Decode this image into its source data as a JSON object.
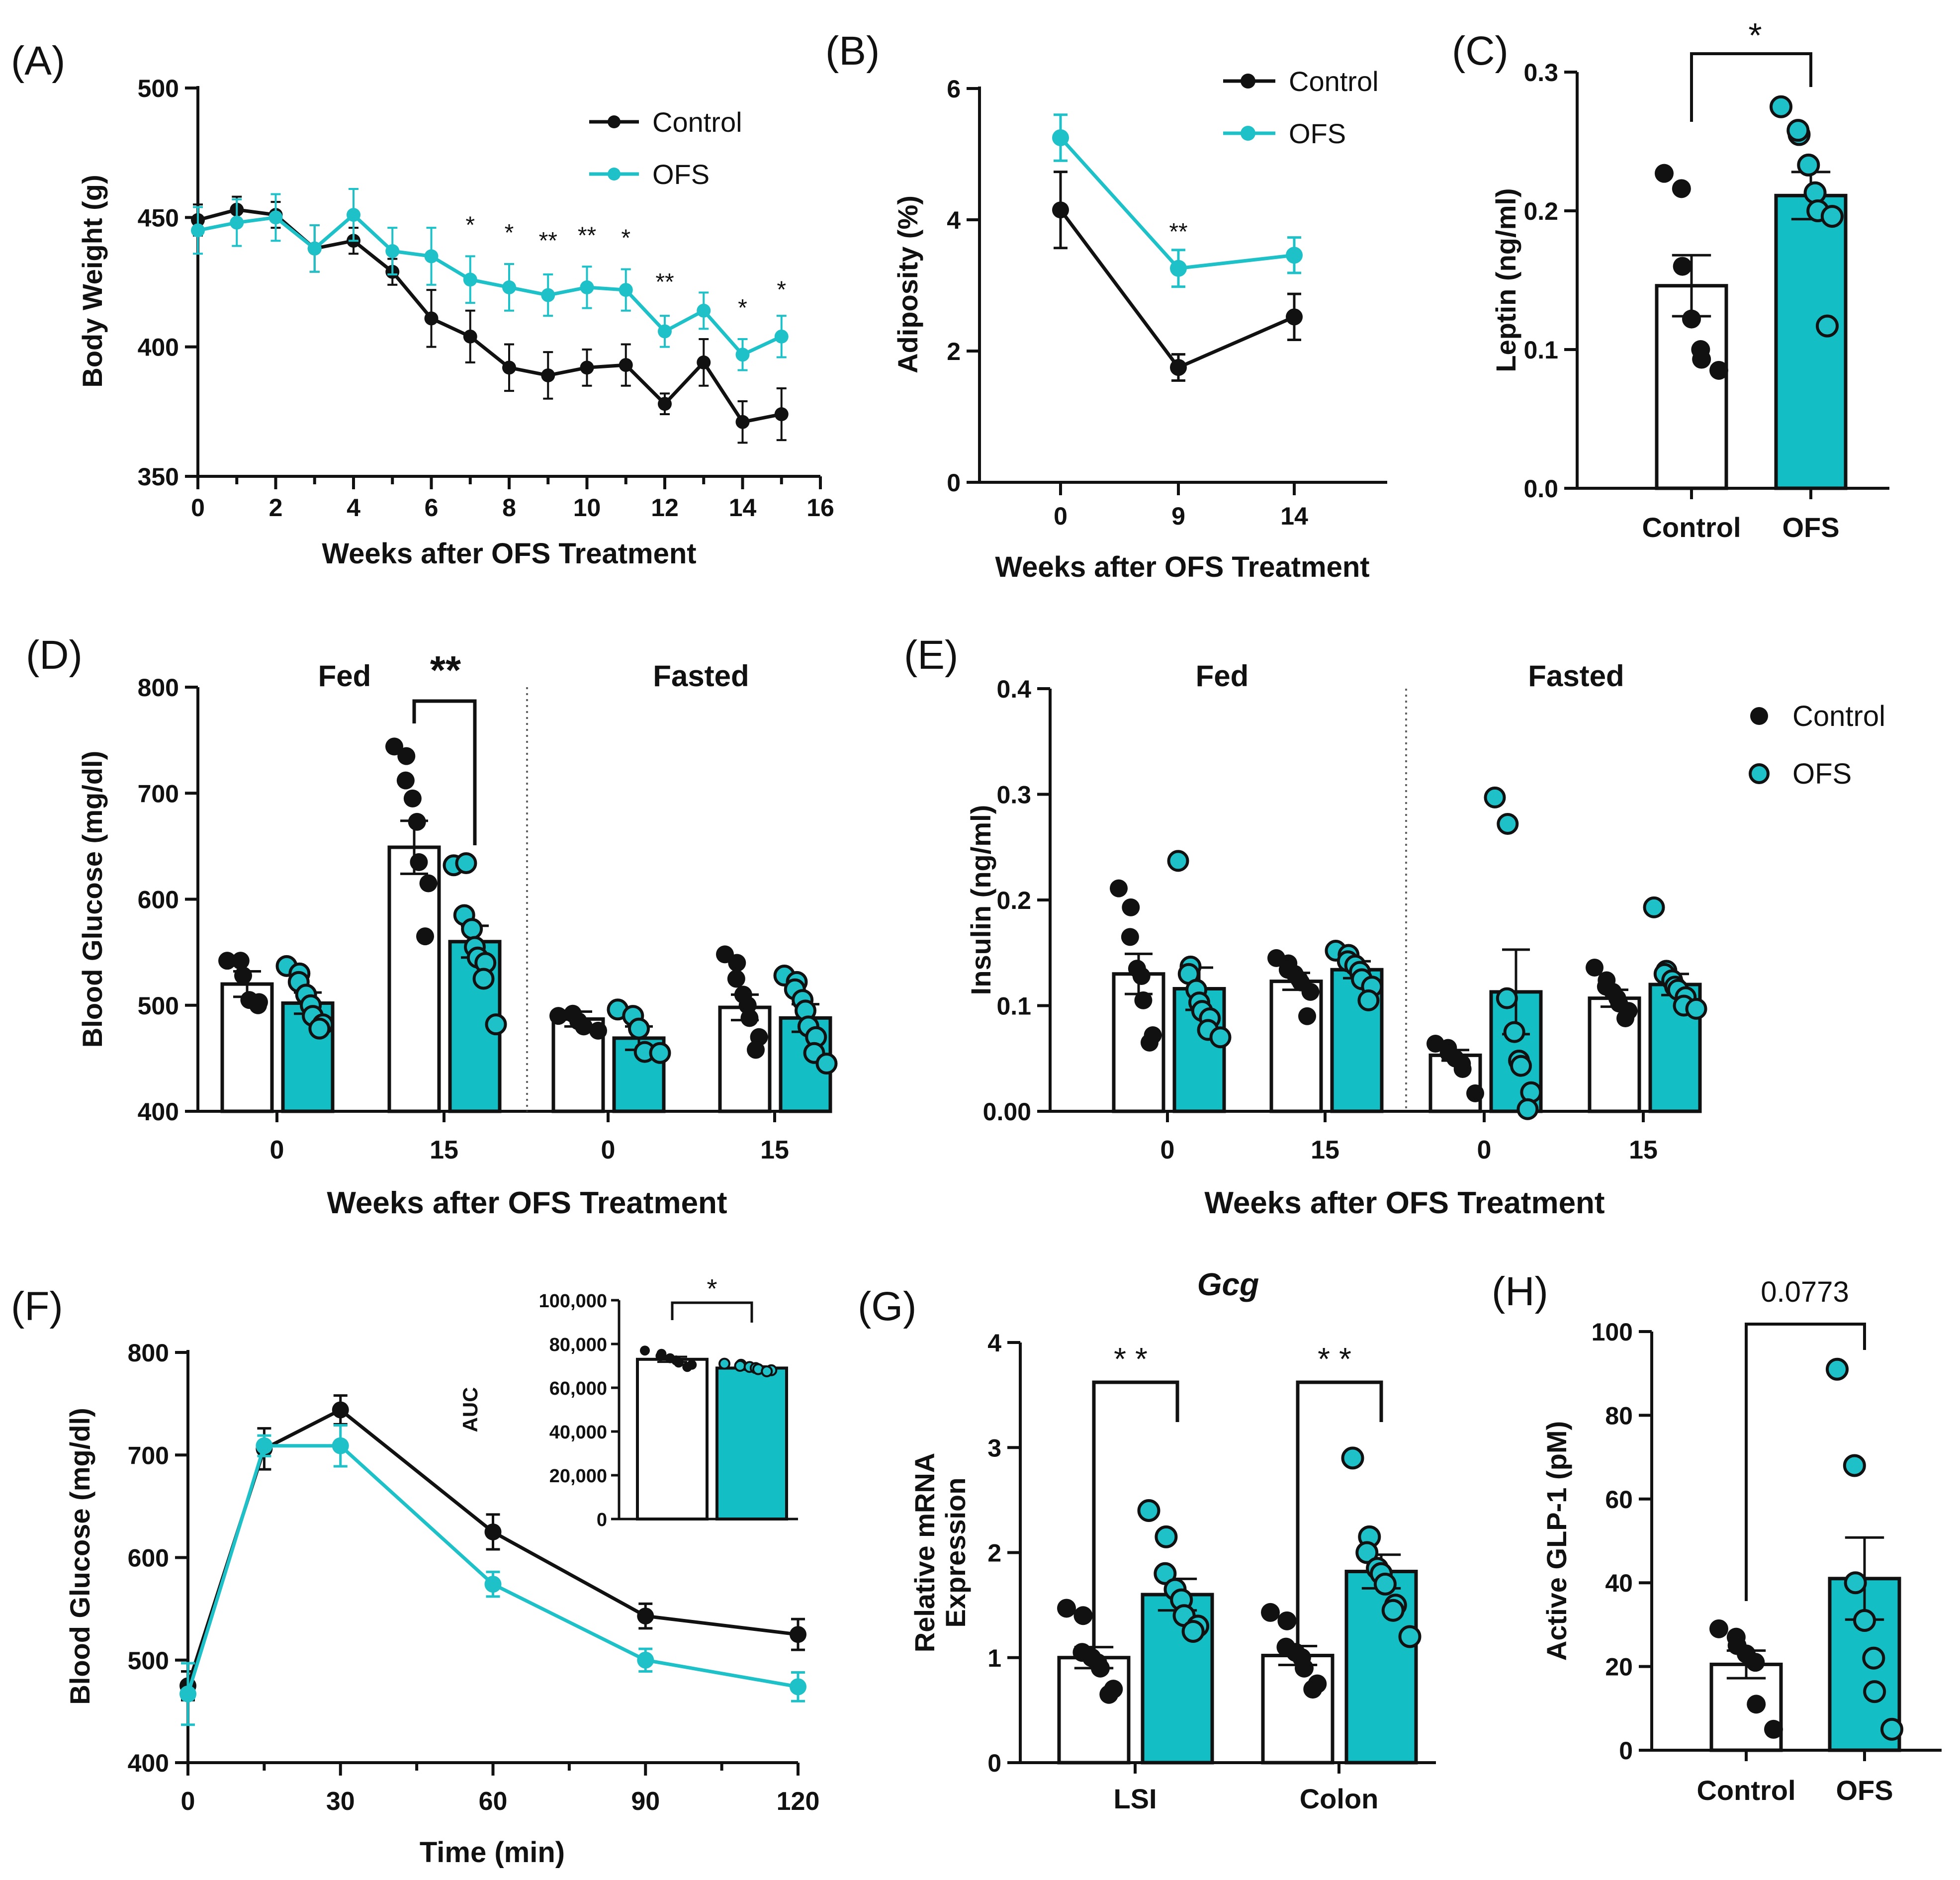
{
  "colors": {
    "control": "#111111",
    "ofs": "#1ec1c8",
    "ofs_bar": "#13bfc4",
    "bar_outline": "#111111"
  },
  "chart_data": [
    {
      "panel": "(A)",
      "type": "line",
      "xlabel": "Weeks after OFS Treatment",
      "ylabel": "Body Weight (g)",
      "xlim": [
        0,
        16
      ],
      "ylim": [
        350,
        500
      ],
      "xticks": [
        "0",
        "2",
        "4",
        "6",
        "8",
        "10",
        "12",
        "14",
        "16"
      ],
      "yticks": [
        "350",
        "400",
        "450",
        "500"
      ],
      "x": [
        0,
        1,
        2,
        3,
        4,
        5,
        6,
        7,
        8,
        9,
        10,
        11,
        12,
        13,
        14,
        15
      ],
      "series": [
        {
          "name": "Control",
          "values": [
            449,
            453,
            451,
            438,
            441,
            429,
            411,
            404,
            392,
            389,
            392,
            393,
            378,
            394,
            371,
            374
          ],
          "err": [
            6,
            5,
            5,
            9,
            5,
            5,
            11,
            10,
            9,
            9,
            7,
            8,
            4,
            9,
            8,
            10
          ]
        },
        {
          "name": "OFS",
          "values": [
            445,
            448,
            450,
            438,
            451,
            437,
            435,
            426,
            423,
            420,
            423,
            422,
            406,
            414,
            397,
            404
          ],
          "err": [
            9,
            9,
            9,
            9,
            10,
            9,
            11,
            9,
            9,
            8,
            8,
            8,
            6,
            7,
            6,
            8
          ]
        }
      ],
      "annotations": [
        {
          "x": 7,
          "y": 444,
          "text": "*"
        },
        {
          "x": 8,
          "y": 441,
          "text": "*"
        },
        {
          "x": 9,
          "y": 438,
          "text": "**"
        },
        {
          "x": 10,
          "y": 440,
          "text": "**"
        },
        {
          "x": 11,
          "y": 439,
          "text": "*"
        },
        {
          "x": 12,
          "y": 422,
          "text": "**"
        },
        {
          "x": 14,
          "y": 412,
          "text": "*"
        },
        {
          "x": 15,
          "y": 419,
          "text": "*"
        }
      ]
    },
    {
      "panel": "(B)",
      "type": "line",
      "xlabel": "Weeks after OFS Treatment",
      "ylabel": "Adiposity (%)",
      "categories": [
        "0",
        "9",
        "14"
      ],
      "ylim": [
        0,
        6
      ],
      "yticks": [
        "0",
        "2",
        "4",
        "6"
      ],
      "series": [
        {
          "name": "Control",
          "values": [
            4.15,
            1.75,
            2.52
          ],
          "err": [
            0.58,
            0.2,
            0.35
          ]
        },
        {
          "name": "OFS",
          "values": [
            5.25,
            3.26,
            3.46
          ],
          "err": [
            0.35,
            0.28,
            0.27
          ]
        }
      ],
      "annotations": [
        {
          "x": 1,
          "y": 4.0,
          "text": "**"
        }
      ]
    },
    {
      "panel": "(C)",
      "type": "bar",
      "ylabel": "Leptin (ng/ml)",
      "categories": [
        "Control",
        "OFS"
      ],
      "ylim": [
        0,
        0.3
      ],
      "yticks": [
        "0.0",
        "0.1",
        "0.2",
        "0.3"
      ],
      "values": [
        0.146,
        0.211
      ],
      "err": [
        0.022,
        0.017
      ],
      "points": [
        [
          0.227,
          0.216,
          0.16,
          0.122,
          0.1,
          0.093,
          0.085
        ],
        [
          0.275,
          0.255,
          0.258,
          0.233,
          0.213,
          0.2,
          0.196,
          0.117
        ]
      ],
      "sig": "*"
    },
    {
      "panel": "(D)",
      "type": "bar",
      "xlabel": "Weeks after OFS Treatment",
      "ylabel": "Blood Glucose (mg/dl)",
      "groups": [
        "Fed",
        "Fasted"
      ],
      "categories": [
        "0",
        "15",
        "0",
        "15"
      ],
      "ylim": [
        400,
        800
      ],
      "yticks": [
        "400",
        "500",
        "600",
        "700",
        "800"
      ],
      "series": [
        {
          "name": "Control",
          "values": [
            520,
            649,
            487,
            498
          ],
          "err": [
            12,
            25,
            7,
            12
          ],
          "points": [
            [
              542,
              542,
              528,
              505,
              503,
              500
            ],
            [
              744,
              735,
              712,
              695,
              673,
              635,
              615,
              565
            ],
            [
              490,
              492,
              485,
              480,
              476
            ],
            [
              548,
              540,
              525,
              510,
              500,
              488,
              470,
              458
            ]
          ]
        },
        {
          "name": "OFS",
          "values": [
            502,
            560,
            469,
            488
          ],
          "err": [
            10,
            15,
            11,
            13
          ],
          "points": [
            [
              537,
              530,
              522,
              510,
              500,
              490,
              482,
              478
            ],
            [
              632,
              634,
              585,
              572,
              555,
              545,
              540,
              525,
              482
            ],
            [
              496,
              490,
              478,
              456,
              455
            ],
            [
              528,
              522,
              515,
              505,
              495,
              480,
              470,
              455,
              445
            ]
          ]
        }
      ],
      "sig": {
        "text": "**",
        "category": 1
      }
    },
    {
      "panel": "(E)",
      "type": "bar",
      "xlabel": "Weeks after OFS Treatment",
      "ylabel": "Insulin (ng/ml)",
      "groups": [
        "Fed",
        "Fasted"
      ],
      "categories": [
        "0",
        "15",
        "0",
        "15"
      ],
      "ylim": [
        0,
        0.4
      ],
      "yticks": [
        "0.00",
        "0.1",
        "0.2",
        "0.3",
        "0.4"
      ],
      "legend": [
        "Control",
        "OFS"
      ],
      "series": [
        {
          "name": "Control",
          "values": [
            0.13,
            0.123,
            0.053,
            0.107
          ],
          "err": [
            0.019,
            0.008,
            0.005,
            0.008
          ],
          "points": [
            [
              0.211,
              0.193,
              0.165,
              0.135,
              0.128,
              0.105,
              0.072,
              0.065
            ],
            [
              0.145,
              0.14,
              0.134,
              0.13,
              0.125,
              0.122,
              0.113,
              0.09
            ],
            [
              0.064,
              0.06,
              0.055,
              0.05,
              0.045,
              0.04,
              0.017
            ],
            [
              0.136,
              0.124,
              0.118,
              0.113,
              0.107,
              0.102,
              0.095,
              0.088
            ]
          ]
        },
        {
          "name": "OFS",
          "values": [
            0.116,
            0.134,
            0.113,
            0.12
          ],
          "err": [
            0.02,
            0.008,
            0.04,
            0.01
          ],
          "points": [
            [
              0.237,
              0.137,
              0.13,
              0.115,
              0.103,
              0.095,
              0.088,
              0.077,
              0.07
            ],
            [
              0.152,
              0.148,
              0.142,
              0.138,
              0.132,
              0.125,
              0.118,
              0.105
            ],
            [
              0.297,
              0.272,
              0.107,
              0.075,
              0.048,
              0.043,
              0.018,
              0.002
            ],
            [
              0.193,
              0.133,
              0.13,
              0.124,
              0.118,
              0.115,
              0.108,
              0.1,
              0.097
            ]
          ]
        }
      ]
    },
    {
      "panel": "(F)",
      "type": "line",
      "xlabel": "Time (min)",
      "ylabel": "Blood Glucose (mg/dl)",
      "x": [
        0,
        15,
        30,
        60,
        90,
        120
      ],
      "ylim": [
        400,
        800
      ],
      "xticks": [
        "0",
        "30",
        "60",
        "90",
        "120"
      ],
      "yticks": [
        "400",
        "500",
        "600",
        "700",
        "800"
      ],
      "series": [
        {
          "name": "Control",
          "values": [
            475,
            706,
            744,
            625,
            543,
            525
          ],
          "err": [
            14,
            20,
            14,
            17,
            12,
            15
          ]
        },
        {
          "name": "OFS",
          "values": [
            467,
            709,
            709,
            574,
            500,
            474
          ],
          "err": [
            30,
            10,
            20,
            12,
            11,
            14
          ]
        }
      ],
      "inset": {
        "type": "bar",
        "ylabel": "AUC",
        "ylim": [
          0,
          100000
        ],
        "yticks": [
          "0",
          "20,000",
          "40,000",
          "60,000",
          "80,000",
          "100,000"
        ],
        "values": [
          73000,
          69000
        ],
        "err": [
          1200,
          800
        ],
        "points": [
          [
            77000,
            75500,
            74500,
            73500,
            72500,
            71500,
            70500,
            69500
          ],
          [
            71000,
            70500,
            70000,
            69500,
            69000,
            68500,
            68000,
            67500
          ]
        ],
        "sig": "*"
      }
    },
    {
      "panel": "(G)",
      "type": "bar",
      "title": "Gcg",
      "ylabel": "Relative mRNA\nExpression",
      "categories": [
        "LSI",
        "Colon"
      ],
      "ylim": [
        0,
        4
      ],
      "yticks": [
        "0",
        "1",
        "2",
        "3",
        "4"
      ],
      "series": [
        {
          "name": "Control",
          "values": [
            1.0,
            1.02
          ],
          "err": [
            0.1,
            0.09
          ],
          "points": [
            [
              1.47,
              1.4,
              1.05,
              1.0,
              0.95,
              0.9,
              0.7,
              0.65
            ],
            [
              1.43,
              1.35,
              1.1,
              1.05,
              1.0,
              0.9,
              0.75,
              0.7
            ]
          ]
        },
        {
          "name": "OFS",
          "values": [
            1.6,
            1.82
          ],
          "err": [
            0.15,
            0.16
          ],
          "points": [
            [
              2.4,
              2.15,
              1.8,
              1.65,
              1.55,
              1.4,
              1.3,
              1.25
            ],
            [
              2.9,
              2.15,
              2.0,
              1.85,
              1.8,
              1.7,
              1.5,
              1.45,
              1.2
            ]
          ]
        }
      ],
      "sig": [
        "**",
        "**"
      ]
    },
    {
      "panel": "(H)",
      "type": "bar",
      "ylabel": "Active GLP-1 (pM)",
      "categories": [
        "Control",
        "OFS"
      ],
      "ylim": [
        0,
        100
      ],
      "yticks": [
        "0",
        "20",
        "40",
        "60",
        "80",
        "100"
      ],
      "values": [
        20.5,
        41
      ],
      "err": [
        3.3,
        9.8
      ],
      "points": [
        [
          29,
          27,
          25,
          23,
          21,
          11,
          5
        ],
        [
          91,
          68,
          40,
          31,
          22,
          14,
          5
        ]
      ],
      "sig": "0.0773"
    }
  ]
}
